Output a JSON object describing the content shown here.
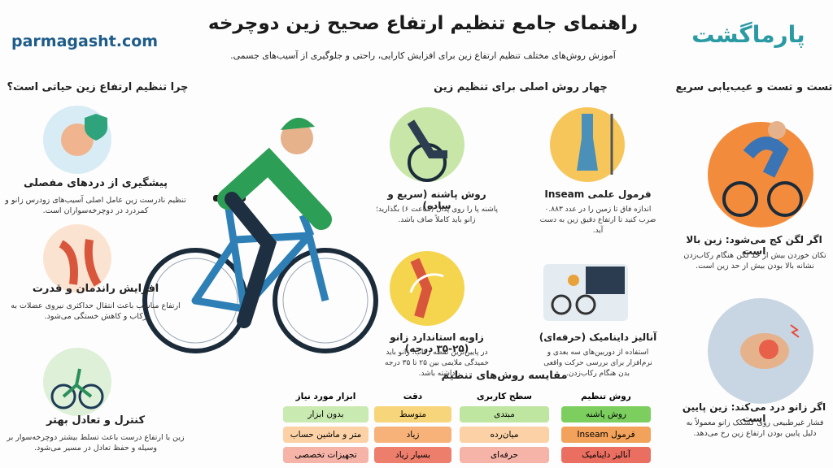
{
  "header": {
    "title": "راهنمای جامع تنظیم ارتفاع صحیح زین دوچرخه",
    "subtitle": "آموزش روش‌های مختلف تنظیم ارتفاع زین برای افزایش کارایی، راحتی و جلوگیری از آسیب‌های جسمی.",
    "site": "parmagasht.com",
    "logo": "پارماگشت"
  },
  "why": {
    "heading": "چرا تنظیم ارتفاع زین حیاتی است؟",
    "items": [
      {
        "title": "پیشگیری از دردهای مفصلی",
        "text": "تنظیم نادرست زین عامل اصلی آسیب‌های زودرس زانو و کمردرد در دوچرخه‌سواران است."
      },
      {
        "title": "افزایش راندمان و قدرت",
        "text": "ارتفاع مناسب باعث انتقال حداکثری نیروی عضلات به رکاب و کاهش خستگی می‌شود."
      },
      {
        "title": "کنترل و تعادل بهتر",
        "text": "زین با ارتفاع درست باعث تسلط بیشتر دوچرخه‌سوار بر وسیله و حفظ تعادل در مسیر می‌شود."
      }
    ]
  },
  "methods": {
    "heading": "چهار روش اصلی برای تنظیم زین",
    "items": [
      {
        "title": "روش پاشنه (سریع و ساده)",
        "text": "پاشنه پا را روی پدال (ساعت ۶) بگذارید؛ زانو باید کاملاً صاف باشد."
      },
      {
        "title": "فرمول علمی Inseam",
        "text": "اندازه فاق تا زمین را در عدد ۰.۸۸۳ ضرب کنید تا ارتفاع دقیق زین به دست آید."
      },
      {
        "title": "زاویه استاندارد زانو (۲۵-۳۵ درجه)",
        "text": "در پایین‌ترین نقطه رکاب، زانو باید خمیدگی ملایمی بین ۲۵ تا ۳۵ درجه داشته باشد."
      },
      {
        "title": "آنالیز داینامیک (حرفه‌ای)",
        "text": "استفاده از دوربین‌های سه بعدی و نرم‌افزار برای بررسی حرکت واقعی بدن هنگام رکاب‌زدن."
      }
    ]
  },
  "table": {
    "title": "مقایسه روش‌های تنظیم",
    "columns": [
      "روش تنظیم",
      "سطح کاربری",
      "دقت",
      "ابزار مورد نیاز"
    ],
    "rows": [
      [
        "روش پاشنه",
        "مبتدی",
        "متوسط",
        "بدون ابزار"
      ],
      [
        "فرمول Inseam",
        "میان‌رده",
        "زیاد",
        "متر و ماشین حساب"
      ],
      [
        "آنالیز داینامیک",
        "حرفه‌ای",
        "بسیار زیاد",
        "تجهیزات تخصصی"
      ]
    ]
  },
  "troubleshoot": {
    "heading": "تست و تست و عیب‌یابی سریع",
    "items": [
      {
        "title": "اگر لگن کج می‌شود: زین بالا است",
        "text": "تکان خوردن بیش از حد لگن هنگام رکاب‌زدن نشانه بالا بودن بیش از حد زین است."
      },
      {
        "title": "اگر زانو درد می‌کند: زین پایین است",
        "text": "فشار غیرطبیعی روی کشکک زانو معمولاً به دلیل پایین بودن ارتفاع زین رخ می‌دهد."
      }
    ]
  }
}
